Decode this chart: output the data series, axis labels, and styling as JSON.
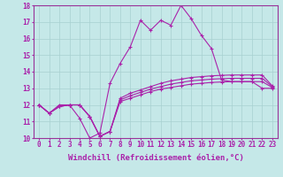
{
  "title": "",
  "xlabel": "Windchill (Refroidissement éolien,°C)",
  "background_color": "#c5e8e8",
  "grid_color": "#a8d0d0",
  "line_color": "#aa22aa",
  "x_values": [
    0,
    1,
    2,
    3,
    4,
    5,
    6,
    7,
    8,
    9,
    10,
    11,
    12,
    13,
    14,
    15,
    16,
    17,
    18,
    19,
    20,
    21,
    22,
    23
  ],
  "line_jagged": [
    12.0,
    11.5,
    12.0,
    12.0,
    11.2,
    10.0,
    10.3,
    13.3,
    14.5,
    15.5,
    17.1,
    16.5,
    17.1,
    16.8,
    18.0,
    17.2,
    16.2,
    15.4,
    13.5,
    13.4,
    13.4,
    13.4,
    13.0,
    13.0
  ],
  "line_smooth1": [
    12.0,
    11.5,
    11.9,
    12.0,
    12.0,
    11.3,
    10.1,
    10.4,
    12.2,
    12.4,
    12.6,
    12.8,
    12.95,
    13.05,
    13.15,
    13.25,
    13.3,
    13.35,
    13.38,
    13.4,
    13.4,
    13.4,
    13.4,
    13.05
  ],
  "line_smooth2": [
    12.0,
    11.5,
    11.9,
    12.0,
    12.0,
    11.3,
    10.1,
    10.4,
    12.4,
    12.7,
    12.9,
    13.1,
    13.3,
    13.45,
    13.55,
    13.65,
    13.7,
    13.75,
    13.78,
    13.8,
    13.8,
    13.8,
    13.8,
    13.15
  ],
  "line_smooth3": [
    12.0,
    11.5,
    11.9,
    12.0,
    12.0,
    11.3,
    10.1,
    10.4,
    12.3,
    12.55,
    12.75,
    12.95,
    13.1,
    13.25,
    13.35,
    13.45,
    13.5,
    13.55,
    13.58,
    13.6,
    13.6,
    13.6,
    13.6,
    13.1
  ],
  "ylim": [
    10,
    18
  ],
  "xlim": [
    0,
    23
  ],
  "yticks": [
    10,
    11,
    12,
    13,
    14,
    15,
    16,
    17,
    18
  ],
  "xticks": [
    0,
    1,
    2,
    3,
    4,
    5,
    6,
    7,
    8,
    9,
    10,
    11,
    12,
    13,
    14,
    15,
    16,
    17,
    18,
    19,
    20,
    21,
    22,
    23
  ],
  "xtick_labels": [
    "0",
    "1",
    "2",
    "3",
    "4",
    "5",
    "6",
    "7",
    "8",
    "9",
    "10",
    "11",
    "12",
    "13",
    "14",
    "15",
    "16",
    "17",
    "18",
    "19",
    "20",
    "21",
    "22",
    "23"
  ],
  "marker": "+",
  "marker_size": 3,
  "linewidth": 0.8,
  "xlabel_fontsize": 6.5,
  "tick_fontsize": 5.5,
  "border_color": "#993399"
}
